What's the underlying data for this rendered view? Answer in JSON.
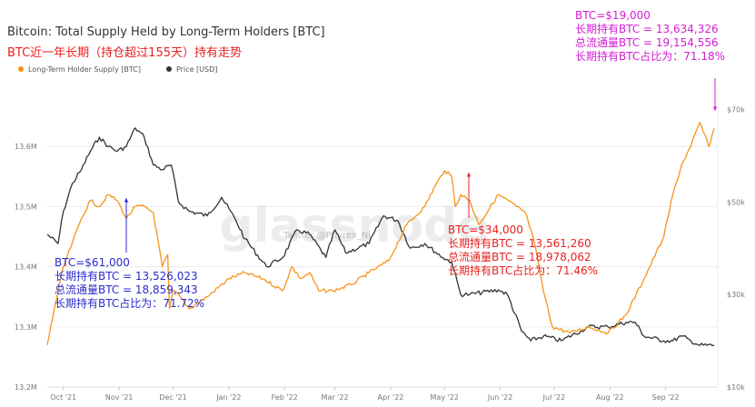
{
  "title": "Bitcoin: Total Supply Held by Long-Term Holders [BTC]",
  "subtitle": "BTC近一年长期（持仓超过155天）持有走势",
  "watermark": "glassnode",
  "watermark_small": "Twitter @Phyrex_Ni",
  "legend": [
    {
      "label": "Long-Term Holder Supply [BTC]",
      "color": "#f7931a"
    },
    {
      "label": "Price [USD]",
      "color": "#333333"
    }
  ],
  "annotations": {
    "blue": {
      "color": "#2b2bcc",
      "lines": [
        "BTC=$61,000",
        "长期持有BTC = 13,526,023",
        "总流通量BTC = 18,859,343",
        "长期持有BTC占比为：71.72%"
      ]
    },
    "red": {
      "color": "#e8211f",
      "lines": [
        "BTC=$34,000",
        "长期持有BTC = 13,561,260",
        "总流通量BTC = 18,978,062",
        "长期持有BTC占比为：71.46%"
      ]
    },
    "magenta": {
      "color": "#d41cd4",
      "lines": [
        "BTC=$19,000",
        "长期持有BTC = 13,634,326",
        "总流通量BTC = 19,154,556",
        "长期持有BTC占比为：71.18%"
      ]
    }
  },
  "chart_data": {
    "type": "line",
    "title": "Bitcoin: Total Supply Held by Long-Term Holders [BTC]",
    "x_ticks": [
      "Oct '21",
      "Nov '21",
      "Dec '21",
      "Jan '22",
      "Feb '22",
      "Mar '22",
      "Apr '22",
      "May '22",
      "Jun '22",
      "Jul '22",
      "Aug '22",
      "Sep '22"
    ],
    "xlim": [
      "2021-09-22",
      "2022-09-30"
    ],
    "y_left": {
      "ticks": [
        "13.2M",
        "13.3M",
        "13.4M",
        "13.5M",
        "13.6M"
      ],
      "range": [
        13.2,
        13.7
      ],
      "unit": "M BTC"
    },
    "y_right": {
      "ticks": [
        "$10k",
        "$30k",
        "$50k",
        "$70k"
      ],
      "range": [
        10,
        75
      ],
      "unit": "k USD"
    },
    "series": [
      {
        "name": "Long-Term Holder Supply [BTC]",
        "color": "#f7931a",
        "axis": "left",
        "x": [
          "2021-09-22",
          "2021-09-26",
          "2021-10-01",
          "2021-10-06",
          "2021-10-11",
          "2021-10-16",
          "2021-10-21",
          "2021-10-26",
          "2021-10-31",
          "2021-11-05",
          "2021-11-10",
          "2021-11-15",
          "2021-11-20",
          "2021-11-25",
          "2021-11-28",
          "2021-11-29",
          "2021-12-01",
          "2021-12-05",
          "2021-12-10",
          "2021-12-20",
          "2022-01-01",
          "2022-01-10",
          "2022-01-20",
          "2022-01-31",
          "2022-02-05",
          "2022-02-10",
          "2022-02-15",
          "2022-02-20",
          "2022-02-28",
          "2022-03-10",
          "2022-03-20",
          "2022-03-31",
          "2022-04-10",
          "2022-04-20",
          "2022-04-25",
          "2022-05-01",
          "2022-05-05",
          "2022-05-07",
          "2022-05-10",
          "2022-05-15",
          "2022-05-20",
          "2022-05-31",
          "2022-06-10",
          "2022-06-15",
          "2022-06-20",
          "2022-06-25",
          "2022-06-30",
          "2022-07-10",
          "2022-07-20",
          "2022-07-31",
          "2022-08-10",
          "2022-08-20",
          "2022-08-31",
          "2022-09-05",
          "2022-09-10",
          "2022-09-15",
          "2022-09-20",
          "2022-09-25",
          "2022-09-28"
        ],
        "values": [
          13.27,
          13.33,
          13.4,
          13.44,
          13.48,
          13.51,
          13.5,
          13.52,
          13.51,
          13.48,
          13.5,
          13.5,
          13.49,
          13.4,
          13.42,
          13.33,
          13.36,
          13.35,
          13.33,
          13.35,
          13.38,
          13.39,
          13.38,
          13.36,
          13.4,
          13.38,
          13.39,
          13.36,
          13.36,
          13.37,
          13.39,
          13.41,
          13.47,
          13.5,
          13.53,
          13.56,
          13.55,
          13.5,
          13.52,
          13.51,
          13.47,
          13.52,
          13.5,
          13.49,
          13.44,
          13.36,
          13.3,
          13.29,
          13.3,
          13.29,
          13.32,
          13.38,
          13.45,
          13.52,
          13.57,
          13.6,
          13.64,
          13.6,
          13.63
        ]
      },
      {
        "name": "Price [USD]",
        "color": "#333333",
        "axis": "right",
        "x": [
          "2021-09-22",
          "2021-09-28",
          "2021-10-01",
          "2021-10-06",
          "2021-10-11",
          "2021-10-16",
          "2021-10-21",
          "2021-10-26",
          "2021-10-31",
          "2021-11-05",
          "2021-11-10",
          "2021-11-15",
          "2021-11-20",
          "2021-11-25",
          "2021-11-30",
          "2021-12-04",
          "2021-12-10",
          "2021-12-20",
          "2021-12-28",
          "2022-01-05",
          "2022-01-10",
          "2022-01-22",
          "2022-01-31",
          "2022-02-08",
          "2022-02-15",
          "2022-02-24",
          "2022-03-01",
          "2022-03-07",
          "2022-03-20",
          "2022-03-28",
          "2022-04-05",
          "2022-04-12",
          "2022-04-20",
          "2022-04-30",
          "2022-05-05",
          "2022-05-10",
          "2022-05-15",
          "2022-05-31",
          "2022-06-05",
          "2022-06-13",
          "2022-06-18",
          "2022-06-25",
          "2022-07-05",
          "2022-07-20",
          "2022-07-31",
          "2022-08-10",
          "2022-08-15",
          "2022-08-20",
          "2022-08-31",
          "2022-09-05",
          "2022-09-10",
          "2022-09-15",
          "2022-09-20",
          "2022-09-28"
        ],
        "values": [
          43,
          41,
          48,
          54,
          57,
          61,
          64,
          62,
          61,
          62,
          66,
          64,
          58,
          57,
          58,
          50,
          48,
          47,
          51,
          46,
          42,
          36,
          38,
          44,
          43,
          38,
          44,
          39,
          41,
          47,
          46,
          40,
          41,
          38,
          37,
          30,
          30,
          31,
          30,
          22,
          20,
          21,
          20,
          23,
          23,
          24,
          24,
          21,
          20,
          20,
          21,
          20,
          19,
          19
        ]
      }
    ]
  }
}
